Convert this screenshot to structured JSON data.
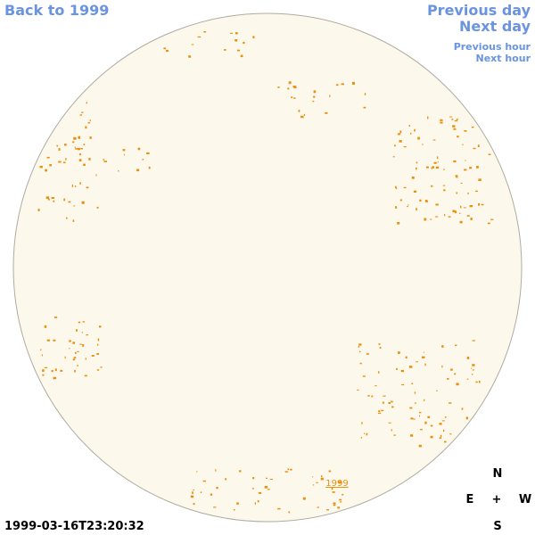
{
  "nav": {
    "back": "Back to 1999",
    "previous_day": "Previous day",
    "next_day": "Next day",
    "previous_hour": "Previous hour",
    "next_hour": "Next hour"
  },
  "disk_label": "1999",
  "timestamp": "1999-03-16T23:20:32",
  "compass": {
    "north": "N",
    "east": "E",
    "center": "+",
    "west": "W",
    "south": "S"
  }
}
